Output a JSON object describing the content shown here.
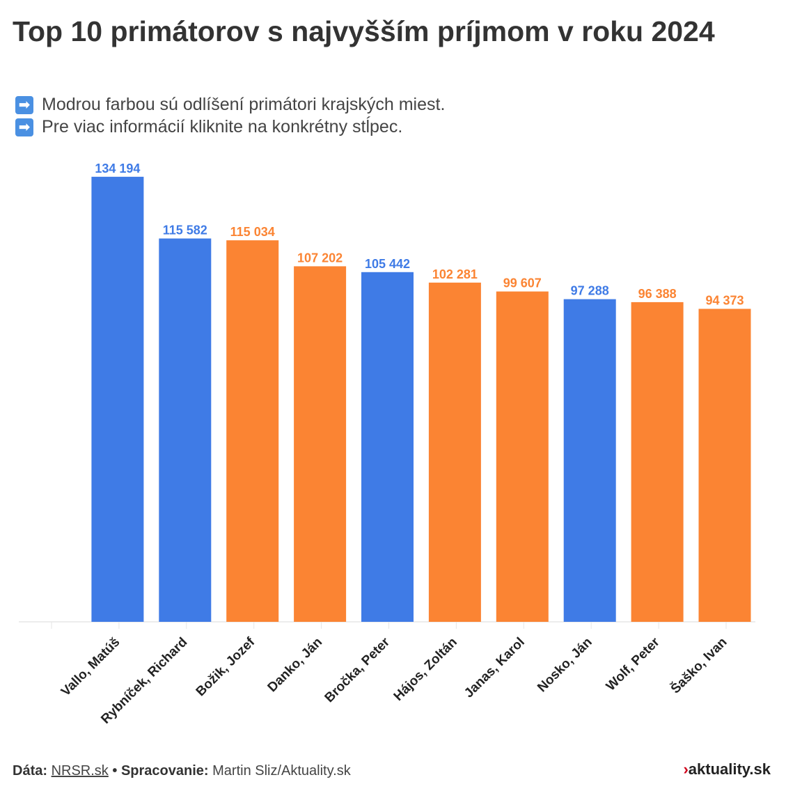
{
  "chart_data": {
    "type": "bar",
    "title": "Top 10 primátorov s najvyšším príjmom v roku 2024",
    "subtitle": [
      "Modrou farbou sú odlíšení primátori krajských miest.",
      "Pre viac informácií kliknite na konkrétny stĺpec."
    ],
    "categories": [
      "Vallo, Matúš",
      "Rybníček, Richard",
      "Božik, Jozef",
      "Danko, Ján",
      "Bročka, Peter",
      "Hájos, Zoltán",
      "Janas, Karol",
      "Nosko, Ján",
      "Wolf, Peter",
      "Šaško, Ivan"
    ],
    "values": [
      134194,
      115582,
      115034,
      107202,
      105442,
      102281,
      99607,
      97288,
      96388,
      94373
    ],
    "value_labels": [
      "134 194",
      "115 582",
      "115 034",
      "107 202",
      "105 442",
      "102 281",
      "99 607",
      "97 288",
      "96 388",
      "94 373"
    ],
    "regional_city": [
      true,
      true,
      false,
      false,
      true,
      false,
      false,
      true,
      false,
      false
    ],
    "colors": {
      "regional": "#3f7be6",
      "other": "#fb8433"
    },
    "xlabel": "",
    "ylabel": "",
    "ylim": [
      0,
      145500
    ],
    "grid": false
  },
  "footer": {
    "data_label": "Dáta:",
    "data_source": "NRSR.sk",
    "separator": "•",
    "processing_label": "Spracovanie:",
    "processing_value": "Martin Sliz/Aktuality.sk"
  },
  "logo": {
    "chevron": "›",
    "text": "aktuality.sk"
  },
  "icons": {
    "note_icon": "arrow-right-icon",
    "note_glyph": "➡"
  }
}
